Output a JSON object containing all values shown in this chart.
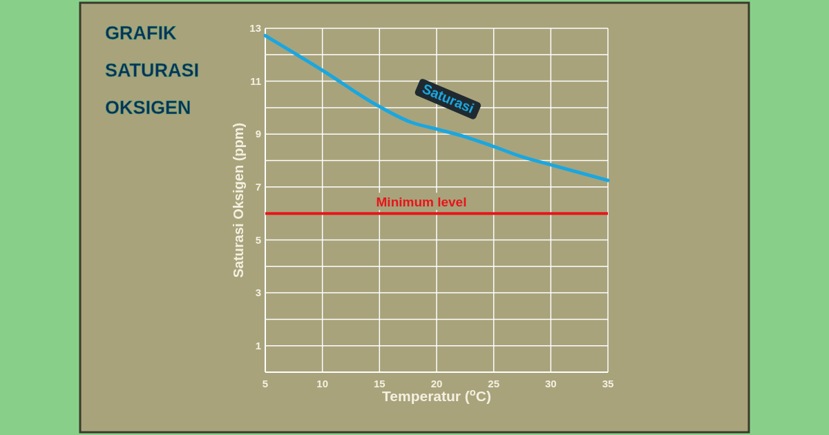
{
  "chart_data": {
    "type": "line",
    "title": "GRAFIK SATURASI OKSIGEN",
    "xlabel": "Temperatur ($^{o}$C)",
    "ylabel": "Saturasi Oksigen (ppm)",
    "xlim": [
      5,
      35
    ],
    "xticks": [
      5,
      10,
      15,
      20,
      25,
      30,
      35
    ],
    "ylim": [
      0,
      13
    ],
    "yticks": [
      {
        "value": 0,
        "label": null
      },
      1,
      {
        "value": 2,
        "label": null
      },
      3,
      {
        "value": 4,
        "label": null
      },
      5,
      {
        "value": 6,
        "label": null
      },
      7,
      {
        "value": 8,
        "label": null
      },
      9,
      {
        "value": 10,
        "label": null
      },
      11,
      {
        "value": 12,
        "label": null
      },
      13
    ],
    "grid": true,
    "marker": "none",
    "line_style": "solid",
    "series": [
      {
        "name": "Saturasi",
        "color": "#1aa7e0",
        "x": [
          5,
          10,
          15,
          17.75,
          20,
          22.5,
          25,
          27.5,
          30,
          35
        ],
        "values": [
          12.72,
          11.41,
          10.04,
          9.45,
          9.19,
          8.9,
          8.53,
          8.14,
          7.84,
          7.25
        ]
      }
    ],
    "ref_lines": [
      {
        "axis": "y",
        "value": 6,
        "label": "Minimum level",
        "color": "#e8141a"
      }
    ]
  }
}
